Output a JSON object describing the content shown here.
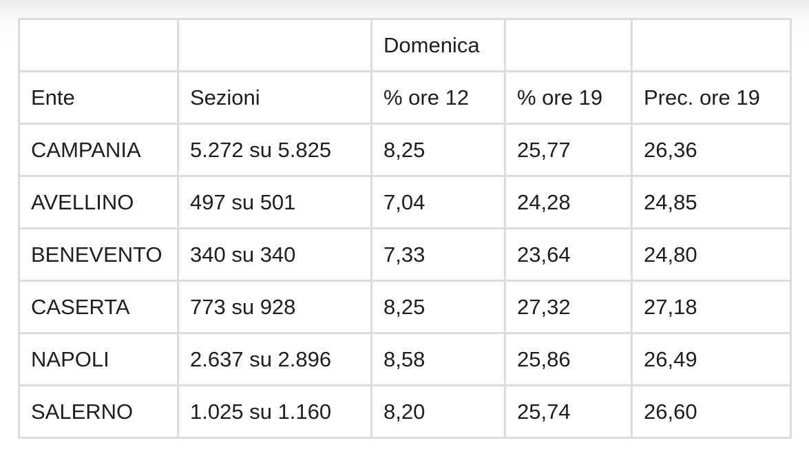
{
  "table": {
    "group_header": "Domenica",
    "header": [
      "Ente",
      "Sezioni",
      "% ore 12",
      "% ore 19",
      "Prec. ore 19"
    ],
    "rows": [
      [
        "CAMPANIA",
        "5.272 su 5.825",
        "8,25",
        "25,77",
        "26,36"
      ],
      [
        "AVELLINO",
        "497 su 501",
        "7,04",
        "24,28",
        "24,85"
      ],
      [
        "BENEVENTO",
        "340 su 340",
        "7,33",
        "23,64",
        "24,80"
      ],
      [
        "CASERTA",
        "773 su 928",
        "8,25",
        "27,32",
        "27,18"
      ],
      [
        "NAPOLI",
        "2.637 su 2.896",
        "8,58",
        "25,86",
        "26,49"
      ],
      [
        "SALERNO",
        "1.025 su 1.160",
        "8,20",
        "25,74",
        "26,60"
      ]
    ]
  }
}
